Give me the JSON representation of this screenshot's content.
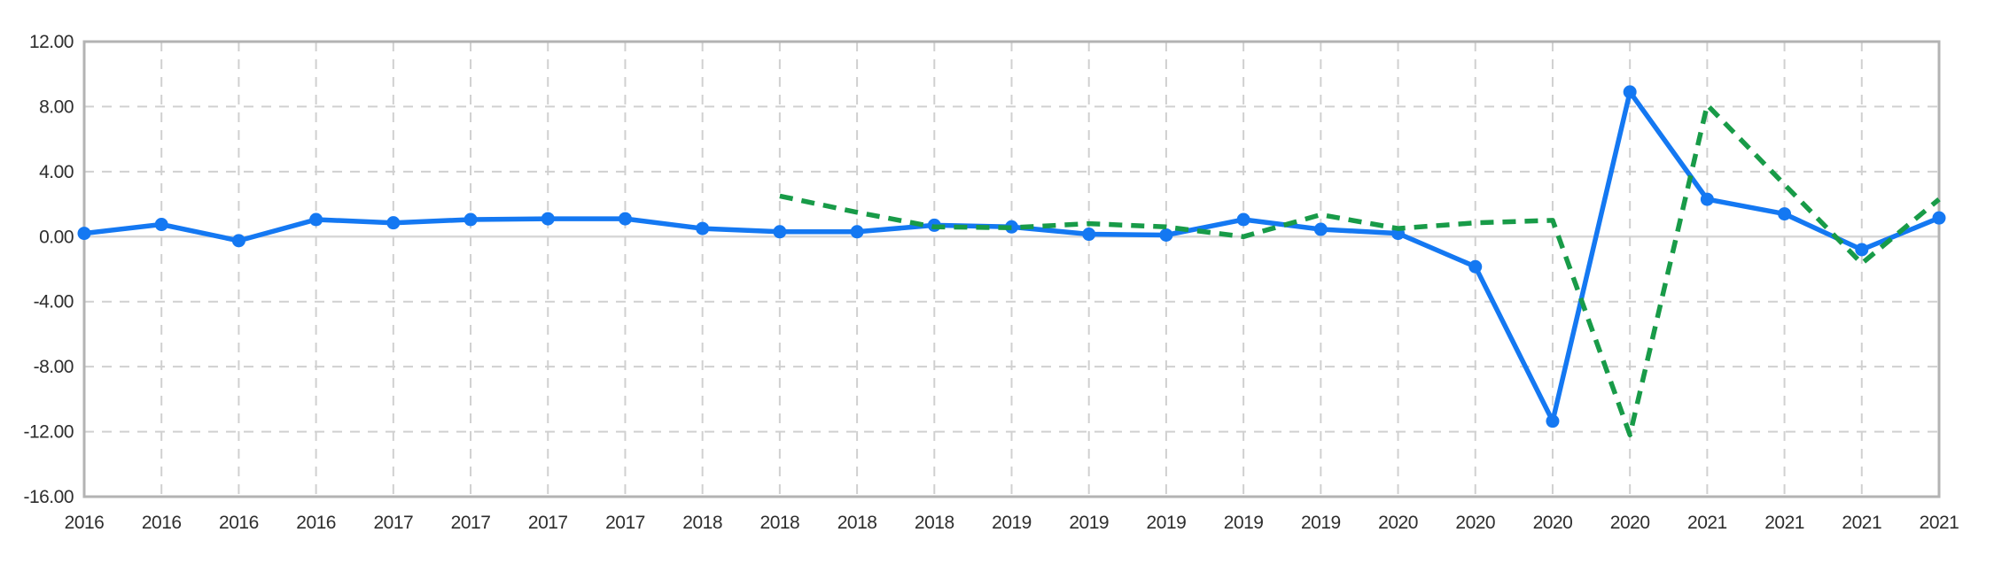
{
  "chart_data": {
    "type": "line",
    "title": "",
    "xlabel": "",
    "ylabel": "",
    "ylim": [
      -16,
      12
    ],
    "ytick_values": [
      12,
      8,
      4,
      0,
      -4,
      -8,
      -12,
      -16
    ],
    "ytick_labels": [
      "12.00",
      "8.00",
      "4.00",
      "0.00",
      "-4.00",
      "-8.00",
      "-12.00",
      "-16.00"
    ],
    "grid": "dashed, vertical line at every period, solid light zero line, full box border",
    "legend_position": "none",
    "categories": [
      "2016",
      "2016",
      "2016",
      "2016",
      "2017",
      "2017",
      "2017",
      "2017",
      "2018",
      "2018",
      "2018",
      "2018",
      "2019",
      "2019",
      "2019",
      "2019",
      "2019",
      "2020",
      "2020",
      "2020",
      "2020",
      "2021",
      "2021",
      "2021",
      "2021"
    ],
    "series": [
      {
        "name": "blue-solid-markers",
        "color": "#1478F2",
        "line_style": "solid",
        "markers": true,
        "values": [
          0.2,
          0.75,
          -0.25,
          1.05,
          0.85,
          1.05,
          1.1,
          1.1,
          0.5,
          0.3,
          0.3,
          0.7,
          0.6,
          0.15,
          0.1,
          1.05,
          0.45,
          0.2,
          -1.85,
          -11.35,
          8.9,
          2.3,
          1.4,
          -0.8,
          1.15
        ]
      },
      {
        "name": "green-dashed",
        "color": "#189B48",
        "line_style": "dashed",
        "markers": false,
        "values": [
          null,
          null,
          null,
          null,
          null,
          null,
          null,
          null,
          null,
          2.5,
          1.5,
          0.6,
          0.55,
          0.8,
          0.6,
          0.0,
          1.35,
          0.5,
          0.85,
          1.0,
          -12.2,
          8.1,
          3.2,
          -1.65,
          2.3
        ]
      }
    ]
  },
  "styles": {
    "background": "#ffffff",
    "border_color": "#b3b3b3",
    "grid_color": "#d0d0d0",
    "zero_line_color": "#d8d8d8",
    "text_color": "#2e2e2e",
    "blue": "#1478F2",
    "green": "#189B48"
  }
}
